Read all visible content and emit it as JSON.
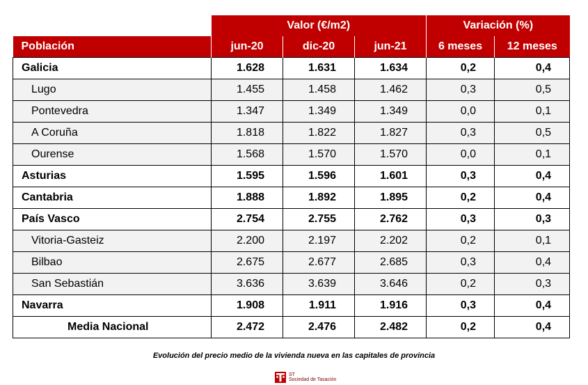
{
  "table": {
    "group_headers": {
      "valor": "Valor (€/m2)",
      "variacion": "Variación (%)"
    },
    "column_headers": [
      "Población",
      "jun-20",
      "dic-20",
      "jun-21",
      "6 meses",
      "12 meses"
    ],
    "rows": [
      {
        "name": "Galicia",
        "type": "region",
        "values": [
          "1.628",
          "1.631",
          "1.634",
          "0,2",
          "0,4"
        ]
      },
      {
        "name": "Lugo",
        "type": "city",
        "values": [
          "1.455",
          "1.458",
          "1.462",
          "0,3",
          "0,5"
        ]
      },
      {
        "name": "Pontevedra",
        "type": "city",
        "values": [
          "1.347",
          "1.349",
          "1.349",
          "0,0",
          "0,1"
        ]
      },
      {
        "name": "A Coruña",
        "type": "city",
        "values": [
          "1.818",
          "1.822",
          "1.827",
          "0,3",
          "0,5"
        ]
      },
      {
        "name": "Ourense",
        "type": "city",
        "values": [
          "1.568",
          "1.570",
          "1.570",
          "0,0",
          "0,1"
        ]
      },
      {
        "name": "Asturias",
        "type": "region",
        "values": [
          "1.595",
          "1.596",
          "1.601",
          "0,3",
          "0,4"
        ]
      },
      {
        "name": "Cantabria",
        "type": "region",
        "values": [
          "1.888",
          "1.892",
          "1.895",
          "0,2",
          "0,4"
        ]
      },
      {
        "name": "País Vasco",
        "type": "region",
        "values": [
          "2.754",
          "2.755",
          "2.762",
          "0,3",
          "0,3"
        ]
      },
      {
        "name": "Vitoria-Gasteiz",
        "type": "city",
        "values": [
          "2.200",
          "2.197",
          "2.202",
          "0,2",
          "0,1"
        ]
      },
      {
        "name": "Bilbao",
        "type": "city",
        "values": [
          "2.675",
          "2.677",
          "2.685",
          "0,3",
          "0,4"
        ]
      },
      {
        "name": "San Sebastián",
        "type": "city",
        "values": [
          "3.636",
          "3.639",
          "3.646",
          "0,2",
          "0,3"
        ]
      },
      {
        "name": "Navarra",
        "type": "region",
        "values": [
          "1.908",
          "1.911",
          "1.916",
          "0,3",
          "0,4"
        ]
      },
      {
        "name": "Media Nacional",
        "type": "national",
        "values": [
          "2.472",
          "2.476",
          "2.482",
          "0,2",
          "0,4"
        ]
      }
    ]
  },
  "caption": "Evolución del precio medio de la vivienda nueva en las capitales de provincia",
  "logo": {
    "mark": "ST",
    "text": "Sociedad de Tasación",
    "icon": "st-logo-icon",
    "color": "#c00000"
  },
  "colors": {
    "header_bg": "#c00000",
    "header_text": "#ffffff",
    "sub_row_bg": "#f2f2f2"
  }
}
